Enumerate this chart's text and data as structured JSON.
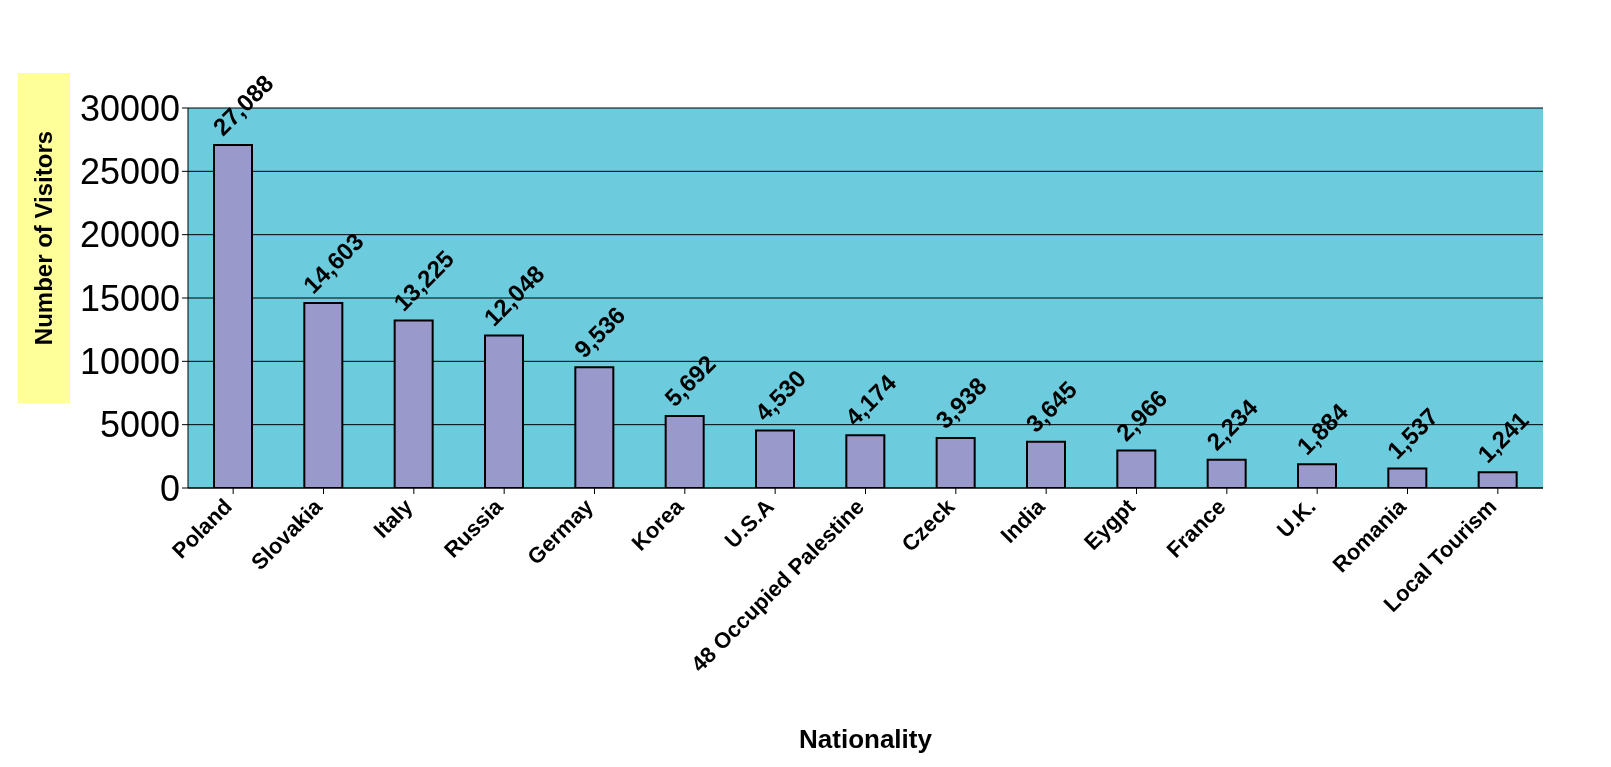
{
  "chart_data": {
    "type": "bar",
    "xlabel": "Nationality",
    "ylabel": "Number of Visitors",
    "categories": [
      "Poland",
      "Slovakia",
      "Italy",
      "Russia",
      "Germay",
      "Korea",
      "U.S.A",
      "48 Occupied Palestine",
      "Czeck",
      "India",
      "Eygpt",
      "France",
      "U.K.",
      "Romania",
      "Local Tourism"
    ],
    "values": [
      27088,
      14603,
      13225,
      12048,
      9536,
      5692,
      4530,
      4174,
      3938,
      3645,
      2966,
      2234,
      1884,
      1537,
      1241
    ],
    "value_labels": [
      "27,088",
      "14,603",
      "13,225",
      "12,048",
      "9,536",
      "5,692",
      "4,530",
      "4,174",
      "3,938",
      "3,645",
      "2,966",
      "2,234",
      "1,884",
      "1,537",
      "1,241"
    ],
    "color": "#9999cc",
    "ylim": [
      0,
      30000
    ],
    "yticks": [
      0,
      5000,
      10000,
      15000,
      20000,
      25000,
      30000
    ],
    "grid": "y",
    "legend": false
  }
}
